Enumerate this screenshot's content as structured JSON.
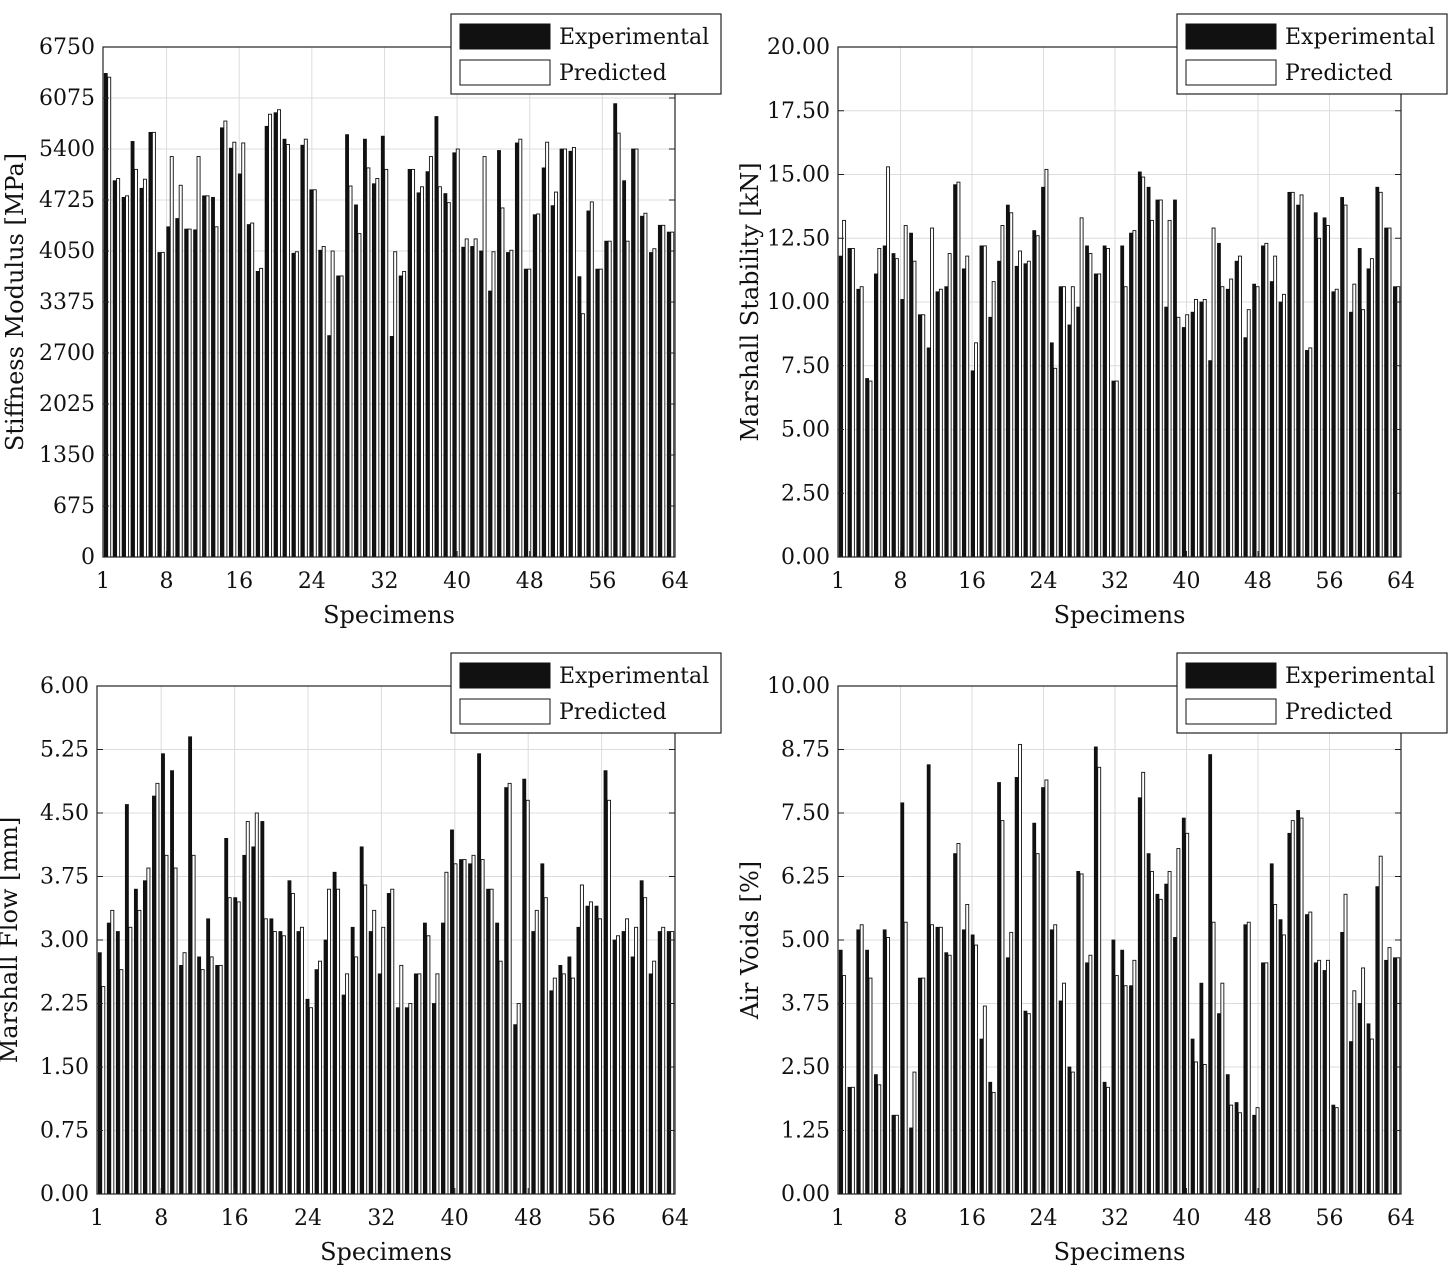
{
  "chart_data": [
    {
      "type": "bar",
      "xlabel": "Specimens",
      "ylabel": "Stiffness Modulus [MPa]",
      "ylim": [
        0,
        6750
      ],
      "yticks": [
        "0",
        "675",
        "1350",
        "2025",
        "2700",
        "3375",
        "4050",
        "4725",
        "5400",
        "6075",
        "6750"
      ],
      "xlim": [
        1,
        64
      ],
      "xticks": [
        "1",
        "8",
        "16",
        "24",
        "32",
        "40",
        "48",
        "56",
        "64"
      ],
      "grid": true,
      "legend": "top-right",
      "series": [
        {
          "name": "Experimental",
          "values": [
            6400,
            4980,
            4760,
            5500,
            4880,
            5620,
            4030,
            4370,
            4480,
            4340,
            4330,
            4780,
            4760,
            5680,
            5410,
            5070,
            4400,
            3780,
            5700,
            5880,
            5530,
            4020,
            5450,
            4860,
            4060,
            2930,
            3720,
            5590,
            4660,
            5530,
            4940,
            5570,
            2920,
            3720,
            5130,
            4820,
            5100,
            5830,
            4810,
            5350,
            4100,
            4110,
            4050,
            3520,
            5380,
            4030,
            5480,
            3810,
            4530,
            5150,
            4650,
            5400,
            5370,
            3710,
            4580,
            3810,
            4180,
            6000,
            4980,
            5400,
            4510,
            4030,
            4390,
            4300
          ]
        },
        {
          "name": "Predicted",
          "values": [
            6350,
            5010,
            4780,
            5130,
            5000,
            5620,
            4030,
            5300,
            4920,
            4340,
            5300,
            4780,
            4370,
            5770,
            5490,
            5480,
            4420,
            3820,
            5860,
            5920,
            5460,
            4040,
            5530,
            4860,
            4110,
            4050,
            3720,
            4910,
            4280,
            5150,
            5010,
            5130,
            4040,
            3780,
            5130,
            4900,
            5300,
            4900,
            4690,
            5400,
            4210,
            4210,
            5300,
            4040,
            4620,
            4060,
            5530,
            3810,
            4540,
            5490,
            4830,
            5400,
            5420,
            3220,
            4700,
            3810,
            4180,
            5610,
            4180,
            5400,
            4550,
            4080,
            4390,
            4300
          ]
        }
      ]
    },
    {
      "type": "bar",
      "xlabel": "Specimens",
      "ylabel": "Marshall Stability [kN]",
      "ylim": [
        0,
        20
      ],
      "yticks": [
        "0.00",
        "2.50",
        "5.00",
        "7.50",
        "10.00",
        "12.50",
        "15.00",
        "17.50",
        "20.00"
      ],
      "xlim": [
        1,
        64
      ],
      "xticks": [
        "1",
        "8",
        "16",
        "24",
        "32",
        "40",
        "48",
        "56",
        "64"
      ],
      "grid": true,
      "legend": "top-right",
      "series": [
        {
          "name": "Experimental",
          "values": [
            11.8,
            12.1,
            10.5,
            7.0,
            11.1,
            12.2,
            11.9,
            10.1,
            12.7,
            9.5,
            8.2,
            10.4,
            10.6,
            14.6,
            11.3,
            7.3,
            12.2,
            9.4,
            11.6,
            13.8,
            11.4,
            11.5,
            12.8,
            14.5,
            8.4,
            10.6,
            9.1,
            9.8,
            12.2,
            11.1,
            12.2,
            6.9,
            12.2,
            12.7,
            15.1,
            14.5,
            14.0,
            9.8,
            14.0,
            9.0,
            9.6,
            10.0,
            7.7,
            12.3,
            10.5,
            11.6,
            8.6,
            10.7,
            12.2,
            10.8,
            10.0,
            14.3,
            13.8,
            8.1,
            13.5,
            13.3,
            10.4,
            14.1,
            9.6,
            12.1,
            11.3,
            14.5,
            12.9,
            10.6
          ]
        },
        {
          "name": "Predicted",
          "values": [
            13.2,
            12.1,
            10.6,
            6.9,
            12.1,
            15.3,
            11.7,
            13.0,
            11.6,
            9.5,
            12.9,
            10.5,
            11.9,
            14.7,
            11.8,
            8.4,
            12.2,
            10.8,
            13.0,
            13.5,
            12.0,
            11.6,
            12.6,
            15.2,
            7.4,
            10.6,
            10.6,
            13.3,
            11.9,
            11.1,
            12.1,
            6.9,
            10.6,
            12.8,
            14.9,
            13.2,
            14.0,
            13.2,
            9.4,
            9.5,
            10.1,
            10.1,
            12.9,
            10.6,
            10.9,
            11.8,
            9.7,
            10.6,
            12.3,
            11.8,
            10.3,
            14.3,
            14.2,
            8.2,
            12.5,
            13.0,
            10.5,
            13.8,
            10.7,
            9.7,
            11.7,
            14.3,
            12.9,
            10.6
          ]
        }
      ]
    },
    {
      "type": "bar",
      "xlabel": "Specimens",
      "ylabel": "Marshall Flow [mm]",
      "ylim": [
        0,
        6
      ],
      "yticks": [
        "0.00",
        "0.75",
        "1.50",
        "2.25",
        "3.00",
        "3.75",
        "4.50",
        "5.25",
        "6.00"
      ],
      "xlim": [
        1,
        64
      ],
      "xticks": [
        "1",
        "8",
        "16",
        "24",
        "32",
        "40",
        "48",
        "56",
        "64"
      ],
      "grid": true,
      "legend": "top-right",
      "series": [
        {
          "name": "Experimental",
          "values": [
            2.85,
            3.2,
            3.1,
            4.6,
            3.6,
            3.7,
            4.7,
            5.2,
            5.0,
            2.7,
            5.4,
            2.8,
            3.25,
            2.7,
            4.2,
            3.5,
            4.0,
            4.1,
            4.4,
            3.25,
            3.1,
            3.7,
            3.1,
            2.3,
            2.65,
            3.0,
            3.8,
            2.35,
            3.15,
            4.1,
            3.1,
            2.6,
            3.55,
            2.2,
            2.2,
            2.6,
            3.2,
            2.25,
            3.2,
            4.3,
            3.95,
            3.9,
            5.2,
            3.6,
            3.2,
            4.8,
            2.0,
            4.9,
            3.1,
            3.9,
            2.4,
            2.7,
            2.8,
            3.15,
            3.4,
            3.4,
            5.0,
            3.0,
            3.1,
            2.8,
            3.7,
            2.6,
            3.1,
            3.1
          ]
        },
        {
          "name": "Predicted",
          "values": [
            2.45,
            3.35,
            2.65,
            3.15,
            3.35,
            3.85,
            4.85,
            4.0,
            3.85,
            2.85,
            4.0,
            2.65,
            2.8,
            2.7,
            3.5,
            3.45,
            4.4,
            4.5,
            3.25,
            3.1,
            3.05,
            3.55,
            3.15,
            2.2,
            2.75,
            3.6,
            3.6,
            2.6,
            2.8,
            3.65,
            3.35,
            3.15,
            3.6,
            2.7,
            2.25,
            2.6,
            3.05,
            2.6,
            3.8,
            3.9,
            3.95,
            4.0,
            3.95,
            3.6,
            2.75,
            4.85,
            2.25,
            4.65,
            3.35,
            3.5,
            2.55,
            2.6,
            2.55,
            3.65,
            3.45,
            3.25,
            4.65,
            3.05,
            3.25,
            3.15,
            3.5,
            2.75,
            3.15,
            3.1
          ]
        }
      ]
    },
    {
      "type": "bar",
      "xlabel": "Specimens",
      "ylabel": "Air Voids [%]",
      "ylim": [
        0,
        10
      ],
      "yticks": [
        "0.00",
        "1.25",
        "2.50",
        "3.75",
        "5.00",
        "6.25",
        "7.50",
        "8.75",
        "10.00"
      ],
      "xlim": [
        1,
        64
      ],
      "xticks": [
        "1",
        "8",
        "16",
        "24",
        "32",
        "40",
        "48",
        "56",
        "64"
      ],
      "grid": true,
      "legend": "top-right",
      "series": [
        {
          "name": "Experimental",
          "values": [
            4.8,
            2.1,
            5.2,
            4.8,
            2.35,
            5.2,
            1.55,
            7.7,
            1.3,
            4.25,
            8.45,
            5.25,
            4.75,
            6.7,
            5.2,
            5.1,
            3.05,
            2.2,
            8.1,
            4.65,
            8.2,
            3.6,
            7.3,
            8.0,
            5.2,
            3.8,
            2.5,
            6.35,
            4.55,
            8.8,
            2.2,
            5.0,
            4.8,
            4.1,
            7.8,
            6.7,
            5.9,
            6.1,
            5.05,
            7.4,
            3.05,
            4.15,
            8.65,
            3.55,
            2.35,
            1.8,
            5.3,
            1.55,
            4.55,
            6.5,
            5.4,
            7.1,
            7.55,
            5.5,
            4.55,
            4.4,
            1.75,
            5.15,
            3.0,
            3.75,
            3.35,
            6.05,
            4.6,
            4.65
          ]
        },
        {
          "name": "Predicted",
          "values": [
            4.3,
            2.1,
            5.3,
            4.25,
            2.15,
            5.05,
            1.55,
            5.35,
            2.4,
            4.25,
            5.3,
            5.25,
            4.7,
            6.9,
            5.7,
            4.9,
            3.7,
            2.0,
            7.35,
            5.15,
            8.85,
            3.55,
            6.7,
            8.15,
            5.3,
            4.15,
            2.4,
            6.3,
            4.7,
            8.4,
            2.1,
            4.3,
            4.1,
            4.6,
            8.3,
            6.35,
            5.8,
            6.35,
            6.8,
            7.1,
            2.6,
            2.55,
            5.35,
            4.15,
            1.75,
            1.6,
            5.35,
            1.7,
            4.55,
            5.7,
            5.1,
            7.35,
            7.4,
            5.55,
            4.6,
            4.6,
            1.7,
            5.9,
            4.0,
            4.45,
            3.05,
            6.65,
            4.85,
            4.65
          ]
        }
      ]
    }
  ]
}
